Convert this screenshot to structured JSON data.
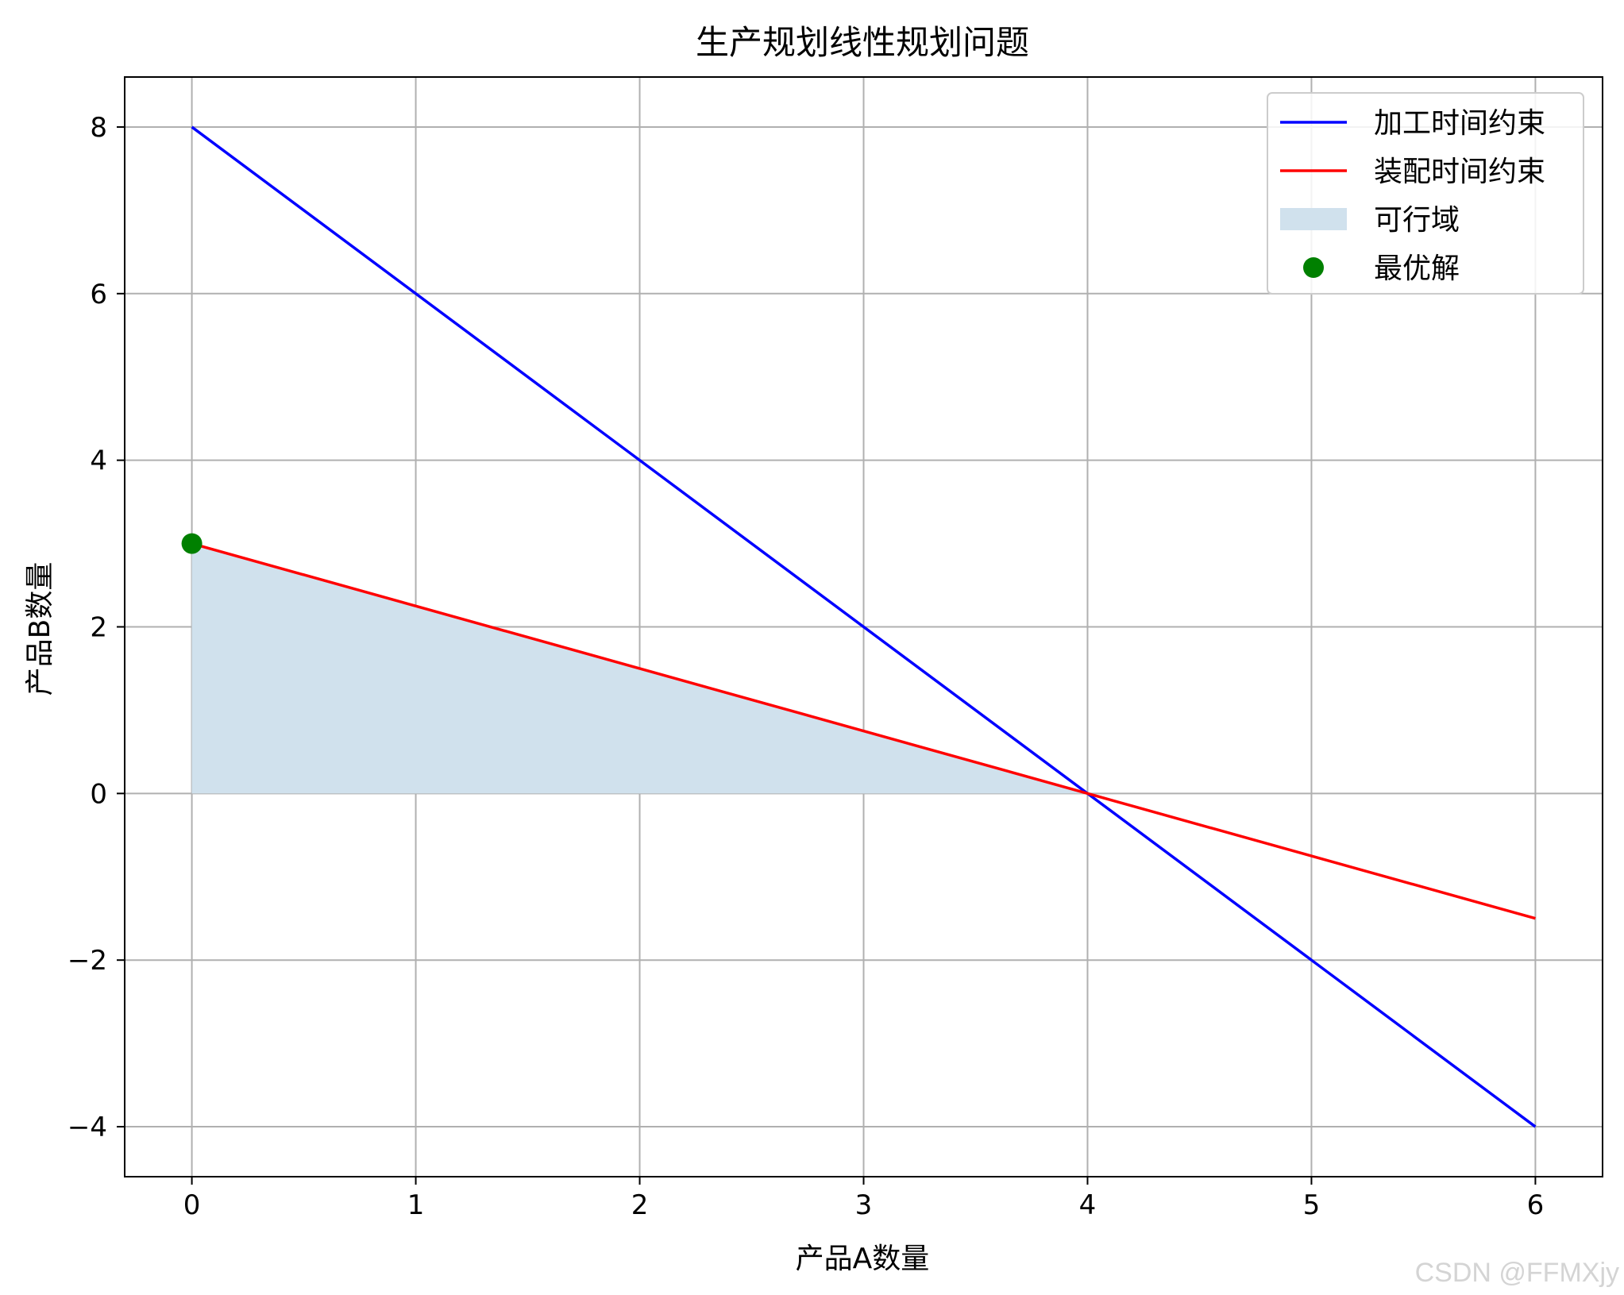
{
  "chart_data": {
    "type": "line",
    "title": "生产规划线性规划问题",
    "xlabel": "产品A数量",
    "ylabel": "产品B数量",
    "xlim": [
      -0.3,
      6.3
    ],
    "ylim": [
      -4.6,
      8.6
    ],
    "xticks": [
      0,
      1,
      2,
      3,
      4,
      5,
      6
    ],
    "xtick_labels": [
      "0",
      "1",
      "2",
      "3",
      "4",
      "5",
      "6"
    ],
    "yticks": [
      -4,
      -2,
      0,
      2,
      4,
      6,
      8
    ],
    "ytick_labels": [
      "−4",
      "−2",
      "0",
      "2",
      "4",
      "6",
      "8"
    ],
    "grid": true,
    "legend_position": "top-right",
    "series": [
      {
        "name": "加工时间约束",
        "kind": "line",
        "color": "#0000ff",
        "x": [
          0,
          6
        ],
        "y": [
          8,
          -4
        ]
      },
      {
        "name": "装配时间约束",
        "kind": "line",
        "color": "#ff0000",
        "x": [
          0,
          6
        ],
        "y": [
          3,
          -1.5
        ]
      },
      {
        "name": "可行域",
        "kind": "area",
        "color": "#d0e1ed",
        "polygon": [
          [
            0,
            0
          ],
          [
            0,
            3
          ],
          [
            4,
            0
          ]
        ]
      },
      {
        "name": "最优解",
        "kind": "point",
        "color": "#008000",
        "x": [
          0
        ],
        "y": [
          3
        ]
      }
    ]
  },
  "watermark": "CSDN @FFMXjy"
}
